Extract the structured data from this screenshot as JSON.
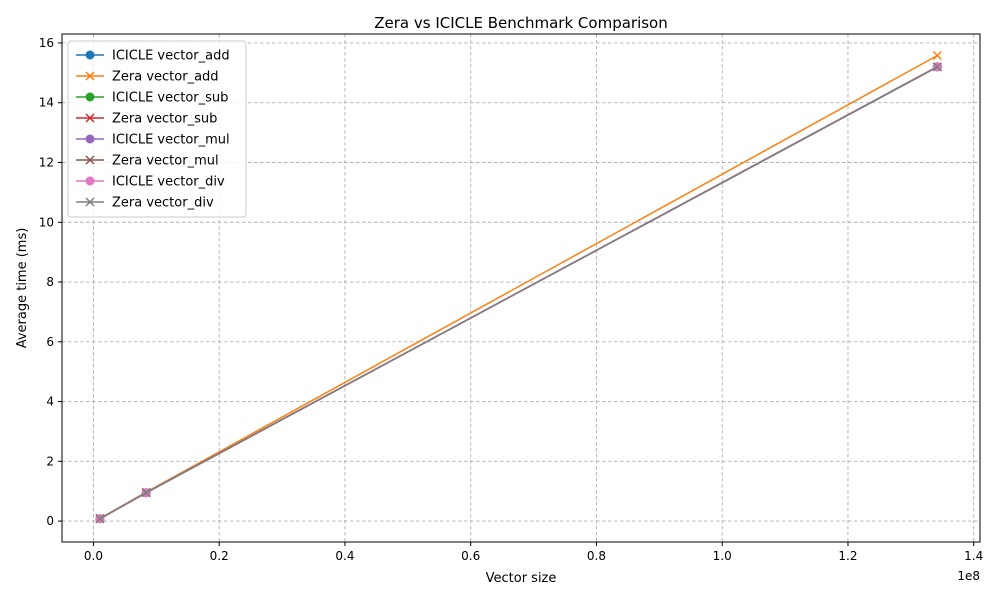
{
  "chart_data": {
    "type": "line",
    "title": "Zera vs ICICLE Benchmark Comparison",
    "xlabel": "Vector size",
    "ylabel": "Average time (ms)",
    "x_scale_text": "1e8",
    "xlim": [
      -5000000,
      141000000
    ],
    "ylim": [
      -0.7,
      16.3
    ],
    "x_ticks": [
      0,
      20000000,
      40000000,
      60000000,
      80000000,
      100000000,
      120000000,
      140000000
    ],
    "x_tick_labels": [
      "0.0",
      "0.2",
      "0.4",
      "0.6",
      "0.8",
      "1.0",
      "1.2",
      "1.4"
    ],
    "y_ticks": [
      0,
      2,
      4,
      6,
      8,
      10,
      12,
      14,
      16
    ],
    "y_tick_labels": [
      "0",
      "2",
      "4",
      "6",
      "8",
      "10",
      "12",
      "14",
      "16"
    ],
    "grid": true,
    "legend_position": "top-left",
    "x": [
      1048576,
      8388608,
      134217728
    ],
    "series": [
      {
        "name": "ICICLE vector_add",
        "values": [
          0.08,
          0.95,
          15.2
        ],
        "color": "#1f77b4",
        "marker": "circle"
      },
      {
        "name": "Zera vector_add",
        "values": [
          0.09,
          0.97,
          15.58
        ],
        "color": "#ff7f0e",
        "marker": "x"
      },
      {
        "name": "ICICLE vector_sub",
        "values": [
          0.08,
          0.95,
          15.2
        ],
        "color": "#2ca02c",
        "marker": "circle"
      },
      {
        "name": "Zera vector_sub",
        "values": [
          0.08,
          0.95,
          15.2
        ],
        "color": "#d62728",
        "marker": "x"
      },
      {
        "name": "ICICLE vector_mul",
        "values": [
          0.08,
          0.95,
          15.21
        ],
        "color": "#9467bd",
        "marker": "circle"
      },
      {
        "name": "Zera vector_mul",
        "values": [
          0.08,
          0.95,
          15.2
        ],
        "color": "#8c564b",
        "marker": "x"
      },
      {
        "name": "ICICLE vector_div",
        "values": [
          0.08,
          0.95,
          15.2
        ],
        "color": "#e377c2",
        "marker": "circle"
      },
      {
        "name": "Zera vector_div",
        "values": [
          0.08,
          0.95,
          15.2
        ],
        "color": "#7f7f7f",
        "marker": "x"
      }
    ]
  }
}
